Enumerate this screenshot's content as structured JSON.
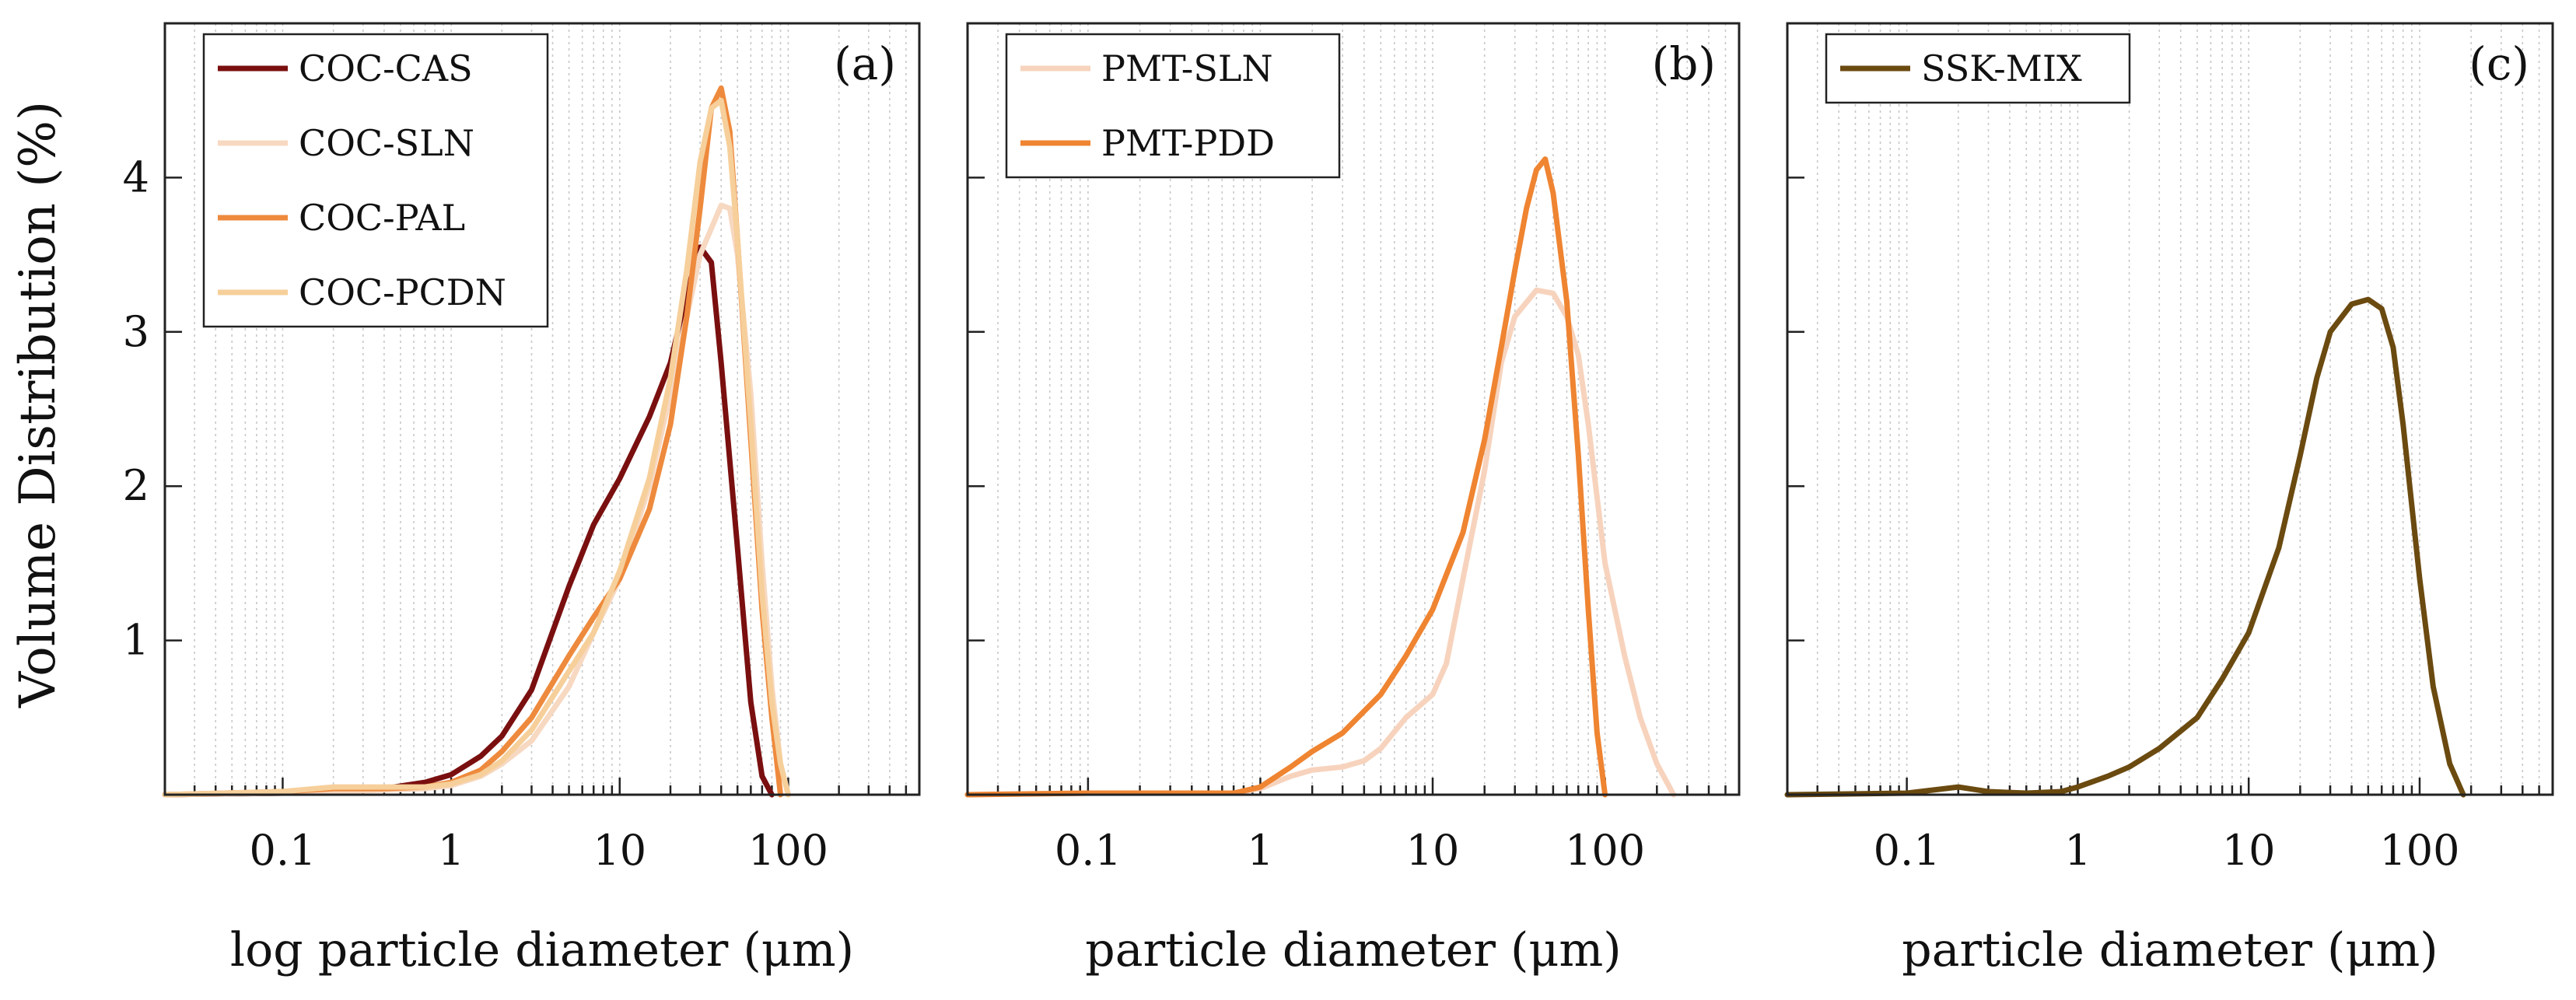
{
  "y_axis_label": "Volume Distribution (%)",
  "chart_data": [
    {
      "type": "line",
      "panel_label": "(a)",
      "xlabel": "log particle diameter (μm)",
      "xscale": "log",
      "xlim": [
        0.02,
        600
      ],
      "ylim": [
        0,
        5.0
      ],
      "x_ticks": [
        0.1,
        1,
        10,
        100
      ],
      "x_tick_labels": [
        "0.1",
        "1",
        "10",
        "100"
      ],
      "y_ticks": [
        1,
        2,
        3,
        4
      ],
      "y_tick_labels": [
        "1",
        "2",
        "3",
        "4"
      ],
      "grid": "vertical minor dotted",
      "legend": "top-left",
      "series": [
        {
          "name": "COC-CAS",
          "color": "#7a0f0f",
          "x": [
            0.02,
            0.1,
            0.2,
            0.4,
            0.7,
            1,
            1.5,
            2,
            3,
            5,
            7,
            10,
            15,
            20,
            25,
            30,
            35,
            40,
            50,
            60,
            70,
            80
          ],
          "y": [
            0,
            0.01,
            0.02,
            0.04,
            0.08,
            0.13,
            0.25,
            0.38,
            0.68,
            1.35,
            1.75,
            2.05,
            2.45,
            2.8,
            3.25,
            3.55,
            3.45,
            2.8,
            1.6,
            0.6,
            0.12,
            0
          ]
        },
        {
          "name": "COC-SLN",
          "color": "#f7d8c1",
          "x": [
            0.02,
            0.1,
            0.2,
            0.4,
            0.7,
            1,
            1.5,
            2,
            3,
            5,
            7,
            10,
            15,
            20,
            30,
            40,
            45,
            50,
            60,
            70,
            80,
            90,
            100
          ],
          "y": [
            0,
            0.01,
            0.02,
            0.03,
            0.04,
            0.06,
            0.12,
            0.2,
            0.35,
            0.7,
            1.05,
            1.4,
            2.0,
            2.6,
            3.5,
            3.82,
            3.8,
            3.5,
            2.6,
            1.5,
            0.7,
            0.2,
            0
          ]
        },
        {
          "name": "COC-PAL",
          "color": "#ee8a3d",
          "x": [
            0.02,
            0.1,
            0.2,
            0.4,
            0.7,
            1,
            1.5,
            2,
            3,
            5,
            7,
            10,
            15,
            20,
            25,
            30,
            35,
            40,
            45,
            50,
            60,
            70,
            80,
            90
          ],
          "y": [
            0,
            0.02,
            0.04,
            0.04,
            0.05,
            0.08,
            0.16,
            0.28,
            0.5,
            0.9,
            1.15,
            1.4,
            1.85,
            2.4,
            3.1,
            3.8,
            4.45,
            4.58,
            4.3,
            3.6,
            2.3,
            1.2,
            0.5,
            0
          ]
        },
        {
          "name": "COC-PCDN",
          "color": "#f6cf9a",
          "x": [
            0.02,
            0.1,
            0.2,
            0.4,
            0.7,
            1,
            1.5,
            2,
            3,
            5,
            7,
            10,
            15,
            20,
            25,
            30,
            35,
            40,
            45,
            50,
            60,
            70,
            80,
            90,
            100
          ],
          "y": [
            0,
            0.02,
            0.05,
            0.05,
            0.05,
            0.07,
            0.13,
            0.22,
            0.42,
            0.8,
            1.05,
            1.45,
            2.05,
            2.7,
            3.4,
            4.1,
            4.45,
            4.5,
            4.2,
            3.6,
            2.4,
            1.3,
            0.6,
            0.2,
            0
          ]
        }
      ]
    },
    {
      "type": "line",
      "panel_label": "(b)",
      "xlabel": "particle diameter (μm)",
      "xscale": "log",
      "xlim": [
        0.02,
        600
      ],
      "ylim": [
        0,
        5.0
      ],
      "x_ticks": [
        0.1,
        1,
        10,
        100
      ],
      "x_tick_labels": [
        "0.1",
        "1",
        "10",
        "100"
      ],
      "y_ticks": [
        1,
        2,
        3,
        4
      ],
      "y_tick_labels": [
        "1",
        "2",
        "3",
        "4"
      ],
      "grid": "vertical minor dotted",
      "legend": "top-left",
      "series": [
        {
          "name": "PMT-SLN",
          "color": "#f7d3bd",
          "x": [
            0.02,
            0.1,
            0.3,
            0.7,
            1,
            1.5,
            2,
            3,
            4,
            5,
            7,
            10,
            12,
            15,
            20,
            25,
            30,
            40,
            50,
            60,
            70,
            80,
            100,
            130,
            160,
            200,
            250
          ],
          "y": [
            0,
            0.01,
            0.01,
            0.01,
            0.04,
            0.12,
            0.16,
            0.18,
            0.22,
            0.3,
            0.5,
            0.65,
            0.85,
            1.4,
            2.1,
            2.8,
            3.1,
            3.27,
            3.25,
            3.1,
            2.85,
            2.4,
            1.5,
            0.9,
            0.5,
            0.2,
            0
          ]
        },
        {
          "name": "PMT-PDD",
          "color": "#ef8431",
          "x": [
            0.02,
            0.1,
            0.3,
            0.7,
            1,
            1.5,
            2,
            3,
            5,
            7,
            10,
            15,
            20,
            25,
            30,
            35,
            40,
            45,
            50,
            60,
            70,
            80,
            90,
            100
          ],
          "y": [
            0,
            0.01,
            0.01,
            0.01,
            0.05,
            0.18,
            0.28,
            0.4,
            0.65,
            0.9,
            1.2,
            1.7,
            2.3,
            2.9,
            3.4,
            3.8,
            4.05,
            4.12,
            3.9,
            3.2,
            2.2,
            1.2,
            0.4,
            0
          ]
        }
      ]
    },
    {
      "type": "line",
      "panel_label": "(c)",
      "xlabel": "particle diameter (μm)",
      "xscale": "log",
      "xlim": [
        0.02,
        600
      ],
      "ylim": [
        0,
        5.0
      ],
      "x_ticks": [
        0.1,
        1,
        10,
        100
      ],
      "x_tick_labels": [
        "0.1",
        "1",
        "10",
        "100"
      ],
      "y_ticks": [
        1,
        2,
        3,
        4
      ],
      "y_tick_labels": [
        "1",
        "2",
        "3",
        "4"
      ],
      "grid": "vertical minor dotted",
      "legend": "top-left",
      "series": [
        {
          "name": "SSK-MIX",
          "color": "#6b4a10",
          "x": [
            0.02,
            0.1,
            0.2,
            0.3,
            0.5,
            0.8,
            1,
            1.5,
            2,
            3,
            5,
            7,
            10,
            15,
            20,
            25,
            30,
            40,
            50,
            60,
            70,
            80,
            100,
            120,
            150,
            180
          ],
          "y": [
            0,
            0.01,
            0.05,
            0.02,
            0.01,
            0.02,
            0.05,
            0.12,
            0.18,
            0.3,
            0.5,
            0.75,
            1.05,
            1.6,
            2.2,
            2.7,
            3.0,
            3.18,
            3.21,
            3.15,
            2.9,
            2.4,
            1.4,
            0.7,
            0.2,
            0
          ]
        }
      ]
    }
  ]
}
